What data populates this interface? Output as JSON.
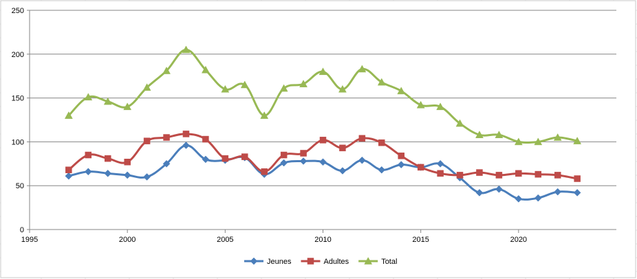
{
  "chart_data": {
    "type": "line",
    "title": "",
    "xlabel": "",
    "ylabel": "",
    "xlim": [
      1995,
      2025
    ],
    "ylim": [
      0,
      250
    ],
    "xticks": [
      1995,
      2000,
      2005,
      2010,
      2015,
      2020
    ],
    "yticks": [
      0,
      50,
      100,
      150,
      200,
      250
    ],
    "grid": "horizontal",
    "legend_position": "bottom",
    "x": [
      1997,
      1998,
      1999,
      2000,
      2001,
      2002,
      2003,
      2004,
      2005,
      2006,
      2007,
      2008,
      2009,
      2010,
      2011,
      2012,
      2013,
      2014,
      2015,
      2016,
      2017,
      2018,
      2019,
      2020,
      2021,
      2022,
      2023
    ],
    "series": [
      {
        "name": "Jeunes",
        "color": "#4a7ebb",
        "marker": "diamond",
        "values": [
          61,
          66,
          64,
          62,
          60,
          75,
          96,
          80,
          79,
          82,
          63,
          76,
          78,
          77,
          67,
          79,
          68,
          74,
          71,
          75,
          59,
          42,
          46,
          35,
          36,
          43,
          42
        ]
      },
      {
        "name": "Adultes",
        "color": "#be4b48",
        "marker": "square",
        "values": [
          68,
          85,
          81,
          77,
          101,
          105,
          109,
          103,
          81,
          83,
          66,
          85,
          87,
          102,
          93,
          104,
          99,
          84,
          71,
          64,
          62,
          65,
          62,
          64,
          63,
          62,
          58
        ]
      },
      {
        "name": "Total",
        "color": "#98b954",
        "marker": "triangle",
        "values": [
          130,
          151,
          146,
          140,
          162,
          181,
          205,
          182,
          160,
          165,
          130,
          161,
          166,
          180,
          160,
          183,
          168,
          158,
          142,
          140,
          121,
          108,
          108,
          100,
          100,
          105,
          101
        ]
      }
    ]
  }
}
